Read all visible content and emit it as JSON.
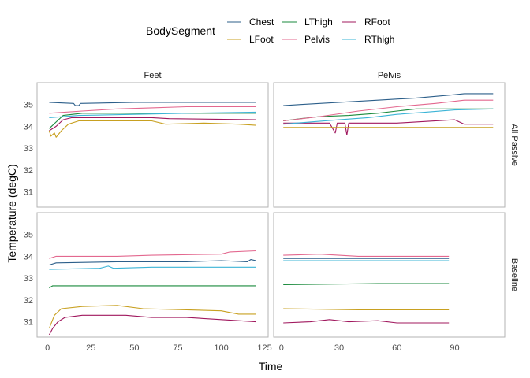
{
  "chart_data": {
    "type": "line",
    "xlabel": "Time",
    "ylabel": "Temperature (degC)",
    "legend": {
      "title": "BodySegment",
      "placement": "top",
      "entries": [
        {
          "name": "Chest",
          "color": "#2c5f8a"
        },
        {
          "name": "LThigh",
          "color": "#1a8a3c"
        },
        {
          "name": "RFoot",
          "color": "#a0185e"
        },
        {
          "name": "LFoot",
          "color": "#c8a020"
        },
        {
          "name": "Pelvis",
          "color": "#e3688f"
        },
        {
          "name": "RThigh",
          "color": "#3bb4d6"
        }
      ]
    },
    "ylim": [
      30.3,
      36.0
    ],
    "yticks": [
      31,
      32,
      33,
      34,
      35
    ],
    "column_strips": [
      "Feet",
      "Pelvis"
    ],
    "row_strips": [
      "All Passive",
      "Baseline"
    ],
    "columns": [
      {
        "xlim": [
          -6,
          127
        ],
        "xticks": [
          0,
          25,
          50,
          75,
          100,
          125
        ]
      },
      {
        "xlim": [
          -4,
          116
        ],
        "xticks": [
          0,
          30,
          60,
          90
        ]
      }
    ],
    "panels": [
      {
        "row": 0,
        "col": 0,
        "series": [
          {
            "name": "Chest",
            "points": [
              [
                1,
                35.1
              ],
              [
                15,
                35.05
              ],
              [
                16,
                34.95
              ],
              [
                18,
                34.95
              ],
              [
                19,
                35.05
              ],
              [
                50,
                35.1
              ],
              [
                120,
                35.1
              ]
            ]
          },
          {
            "name": "LThigh",
            "points": [
              [
                1,
                33.9
              ],
              [
                5,
                34.2
              ],
              [
                9,
                34.5
              ],
              [
                20,
                34.6
              ],
              [
                120,
                34.6
              ]
            ]
          },
          {
            "name": "RFoot",
            "points": [
              [
                1,
                33.8
              ],
              [
                5,
                34.0
              ],
              [
                9,
                34.3
              ],
              [
                14,
                34.4
              ],
              [
                60,
                34.4
              ],
              [
                70,
                34.35
              ],
              [
                120,
                34.3
              ]
            ]
          },
          {
            "name": "LFoot",
            "points": [
              [
                1,
                33.8
              ],
              [
                2,
                33.55
              ],
              [
                4,
                33.7
              ],
              [
                5,
                33.5
              ],
              [
                8,
                33.8
              ],
              [
                12,
                34.1
              ],
              [
                18,
                34.25
              ],
              [
                60,
                34.25
              ],
              [
                68,
                34.1
              ],
              [
                90,
                34.15
              ],
              [
                110,
                34.1
              ],
              [
                120,
                34.05
              ]
            ]
          },
          {
            "name": "Pelvis",
            "points": [
              [
                1,
                34.6
              ],
              [
                20,
                34.7
              ],
              [
                40,
                34.8
              ],
              [
                60,
                34.85
              ],
              [
                80,
                34.9
              ],
              [
                120,
                34.9
              ]
            ]
          },
          {
            "name": "RThigh",
            "points": [
              [
                1,
                34.4
              ],
              [
                18,
                34.5
              ],
              [
                50,
                34.55
              ],
              [
                80,
                34.6
              ],
              [
                120,
                34.65
              ]
            ]
          }
        ]
      },
      {
        "row": 0,
        "col": 1,
        "series": [
          {
            "name": "Chest",
            "points": [
              [
                1,
                34.95
              ],
              [
                10,
                35.0
              ],
              [
                30,
                35.1
              ],
              [
                50,
                35.2
              ],
              [
                70,
                35.3
              ],
              [
                90,
                35.45
              ],
              [
                95,
                35.5
              ],
              [
                110,
                35.5
              ]
            ]
          },
          {
            "name": "LThigh",
            "points": [
              [
                1,
                34.25
              ],
              [
                10,
                34.35
              ],
              [
                20,
                34.45
              ],
              [
                35,
                34.5
              ],
              [
                50,
                34.6
              ],
              [
                60,
                34.7
              ],
              [
                70,
                34.8
              ],
              [
                80,
                34.8
              ],
              [
                110,
                34.8
              ]
            ]
          },
          {
            "name": "RFoot",
            "points": [
              [
                1,
                34.15
              ],
              [
                25,
                34.15
              ],
              [
                28,
                33.7
              ],
              [
                29,
                34.15
              ],
              [
                33,
                34.15
              ],
              [
                34,
                33.6
              ],
              [
                35,
                34.15
              ],
              [
                60,
                34.15
              ],
              [
                90,
                34.3
              ],
              [
                95,
                34.1
              ],
              [
                110,
                34.1
              ]
            ]
          },
          {
            "name": "LFoot",
            "points": [
              [
                1,
                33.95
              ],
              [
                110,
                33.95
              ]
            ]
          },
          {
            "name": "Pelvis",
            "points": [
              [
                1,
                34.25
              ],
              [
                20,
                34.45
              ],
              [
                40,
                34.7
              ],
              [
                60,
                34.9
              ],
              [
                80,
                35.05
              ],
              [
                95,
                35.2
              ],
              [
                110,
                35.2
              ]
            ]
          },
          {
            "name": "RThigh",
            "points": [
              [
                1,
                34.1
              ],
              [
                15,
                34.2
              ],
              [
                30,
                34.3
              ],
              [
                45,
                34.4
              ],
              [
                60,
                34.55
              ],
              [
                75,
                34.65
              ],
              [
                90,
                34.75
              ],
              [
                110,
                34.8
              ]
            ]
          }
        ]
      },
      {
        "row": 1,
        "col": 0,
        "series": [
          {
            "name": "Chest",
            "points": [
              [
                1,
                33.6
              ],
              [
                5,
                33.7
              ],
              [
                40,
                33.75
              ],
              [
                80,
                33.75
              ],
              [
                100,
                33.8
              ],
              [
                115,
                33.75
              ],
              [
                117,
                33.85
              ],
              [
                120,
                33.8
              ]
            ]
          },
          {
            "name": "LThigh",
            "points": [
              [
                1,
                32.55
              ],
              [
                3,
                32.65
              ],
              [
                120,
                32.65
              ]
            ]
          },
          {
            "name": "RFoot",
            "points": [
              [
                1,
                30.4
              ],
              [
                3,
                30.7
              ],
              [
                6,
                31.0
              ],
              [
                10,
                31.2
              ],
              [
                20,
                31.3
              ],
              [
                45,
                31.3
              ],
              [
                60,
                31.2
              ],
              [
                80,
                31.2
              ],
              [
                100,
                31.1
              ],
              [
                120,
                31.0
              ]
            ]
          },
          {
            "name": "LFoot",
            "points": [
              [
                1,
                30.7
              ],
              [
                4,
                31.3
              ],
              [
                8,
                31.6
              ],
              [
                20,
                31.7
              ],
              [
                40,
                31.75
              ],
              [
                55,
                31.6
              ],
              [
                80,
                31.55
              ],
              [
                100,
                31.5
              ],
              [
                110,
                31.35
              ],
              [
                120,
                31.35
              ]
            ]
          },
          {
            "name": "Pelvis",
            "points": [
              [
                1,
                33.9
              ],
              [
                5,
                34.0
              ],
              [
                40,
                34.0
              ],
              [
                60,
                34.05
              ],
              [
                100,
                34.1
              ],
              [
                105,
                34.2
              ],
              [
                120,
                34.25
              ]
            ]
          },
          {
            "name": "RThigh",
            "points": [
              [
                1,
                33.4
              ],
              [
                30,
                33.45
              ],
              [
                35,
                33.55
              ],
              [
                38,
                33.45
              ],
              [
                60,
                33.5
              ],
              [
                120,
                33.5
              ]
            ]
          }
        ]
      },
      {
        "row": 1,
        "col": 1,
        "series": [
          {
            "name": "Chest",
            "points": [
              [
                1,
                33.9
              ],
              [
                87,
                33.9
              ]
            ]
          },
          {
            "name": "LThigh",
            "points": [
              [
                1,
                32.7
              ],
              [
                50,
                32.75
              ],
              [
                87,
                32.75
              ]
            ]
          },
          {
            "name": "RFoot",
            "points": [
              [
                1,
                30.95
              ],
              [
                15,
                31.0
              ],
              [
                25,
                31.1
              ],
              [
                35,
                31.0
              ],
              [
                50,
                31.05
              ],
              [
                60,
                30.95
              ],
              [
                87,
                30.95
              ]
            ]
          },
          {
            "name": "LFoot",
            "points": [
              [
                1,
                31.6
              ],
              [
                40,
                31.55
              ],
              [
                87,
                31.55
              ]
            ]
          },
          {
            "name": "Pelvis",
            "points": [
              [
                1,
                34.05
              ],
              [
                20,
                34.1
              ],
              [
                40,
                34.0
              ],
              [
                87,
                34.0
              ]
            ]
          },
          {
            "name": "RThigh",
            "points": [
              [
                1,
                33.8
              ],
              [
                87,
                33.8
              ]
            ]
          }
        ]
      }
    ]
  }
}
